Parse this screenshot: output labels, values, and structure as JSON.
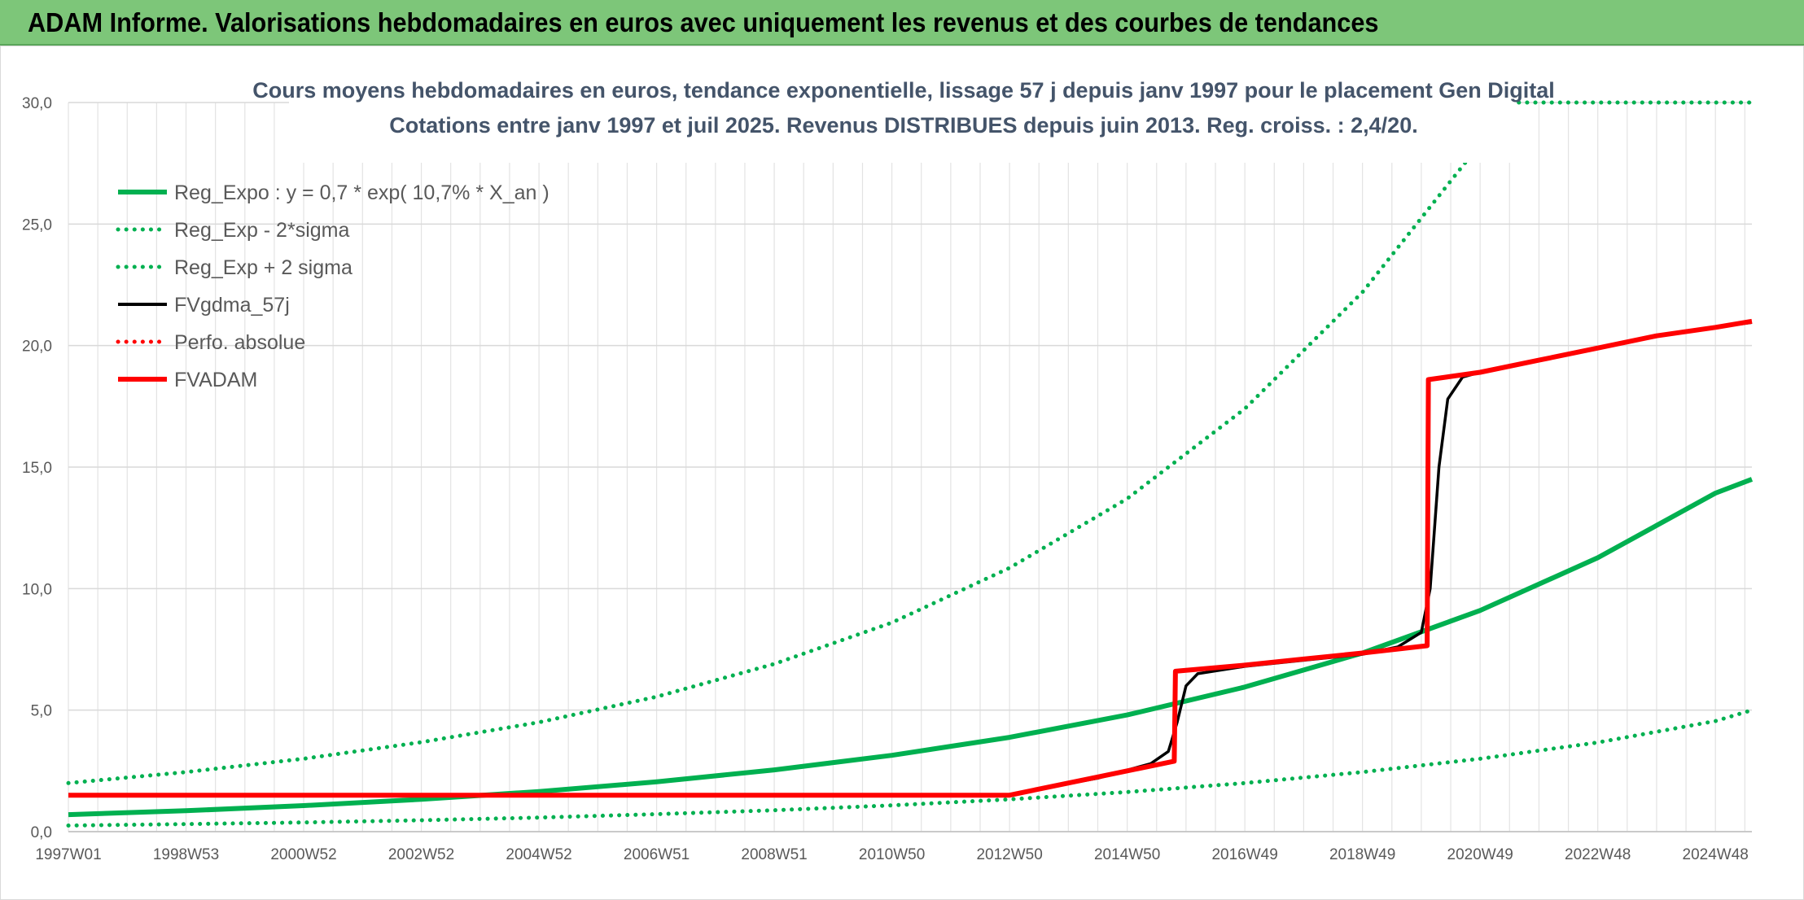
{
  "header": {
    "title": "ADAM Informe. Valorisations hebdomadaires en euros avec uniquement les revenus et des courbes de tendances"
  },
  "colors": {
    "header_bg": "#7dc679",
    "green": "#00b050",
    "red": "#ff0000",
    "black": "#000000",
    "grid": "#d9d9d9"
  },
  "chart_data": {
    "type": "line",
    "title": "Cours moyens hebdomadaires en euros, tendance exponentielle, lissage 57 j depuis janv 1997 pour le placement Gen Digital",
    "subtitle": "Cotations entre janv 1997 et juil 2025. Revenus DISTRIBUES depuis juin 2013. Reg. croiss. : 2,4/20.",
    "xlabel": "",
    "ylabel": "",
    "x_range": [
      1997.0,
      2025.62
    ],
    "ylim": [
      0,
      30
    ],
    "y_ticks": [
      "0,0",
      "5,0",
      "10,0",
      "15,0",
      "20,0",
      "25,0",
      "30,0"
    ],
    "x_ticks": [
      {
        "label": "1997W01",
        "x": 1997.0
      },
      {
        "label": "1998W53",
        "x": 1999.0
      },
      {
        "label": "2000W52",
        "x": 2001.0
      },
      {
        "label": "2002W52",
        "x": 2003.0
      },
      {
        "label": "2004W52",
        "x": 2005.0
      },
      {
        "label": "2006W51",
        "x": 2007.0
      },
      {
        "label": "2008W51",
        "x": 2009.0
      },
      {
        "label": "2010W50",
        "x": 2011.0
      },
      {
        "label": "2012W50",
        "x": 2013.0
      },
      {
        "label": "2014W50",
        "x": 2015.0
      },
      {
        "label": "2016W49",
        "x": 2017.0
      },
      {
        "label": "2018W49",
        "x": 2019.0
      },
      {
        "label": "2020W49",
        "x": 2021.0
      },
      {
        "label": "2022W48",
        "x": 2023.0
      },
      {
        "label": "2024W48",
        "x": 2025.0
      }
    ],
    "grid": true,
    "legend_position": "top-left",
    "series": [
      {
        "name": "Reg_Expo : y = 0,7 * exp( 10,7% *  X_an )",
        "color": "#00b050",
        "style": "solid",
        "points": [
          [
            1997.0,
            0.7
          ],
          [
            1999.0,
            0.86
          ],
          [
            2001.0,
            1.07
          ],
          [
            2003.0,
            1.33
          ],
          [
            2005.0,
            1.65
          ],
          [
            2007.0,
            2.05
          ],
          [
            2009.0,
            2.54
          ],
          [
            2011.0,
            3.14
          ],
          [
            2013.0,
            3.88
          ],
          [
            2015.0,
            4.8
          ],
          [
            2017.0,
            5.95
          ],
          [
            2019.0,
            7.35
          ],
          [
            2021.0,
            9.1
          ],
          [
            2023.0,
            11.27
          ],
          [
            2025.0,
            13.93
          ],
          [
            2025.62,
            14.5
          ]
        ]
      },
      {
        "name": "Reg_Exp - 2*sigma",
        "color": "#00b050",
        "style": "dotted",
        "points": [
          [
            1997.0,
            0.25
          ],
          [
            1999.0,
            0.31
          ],
          [
            2001.0,
            0.38
          ],
          [
            2003.0,
            0.47
          ],
          [
            2005.0,
            0.58
          ],
          [
            2007.0,
            0.72
          ],
          [
            2009.0,
            0.88
          ],
          [
            2011.0,
            1.08
          ],
          [
            2013.0,
            1.33
          ],
          [
            2015.0,
            1.63
          ],
          [
            2017.0,
            2.0
          ],
          [
            2019.0,
            2.45
          ],
          [
            2021.0,
            3.0
          ],
          [
            2023.0,
            3.67
          ],
          [
            2025.0,
            4.55
          ],
          [
            2025.62,
            5.0
          ]
        ]
      },
      {
        "name": "Reg_Exp + 2 sigma",
        "color": "#00b050",
        "style": "dotted",
        "points": [
          [
            1997.0,
            2.0
          ],
          [
            1999.0,
            2.45
          ],
          [
            2001.0,
            3.0
          ],
          [
            2003.0,
            3.68
          ],
          [
            2005.0,
            4.5
          ],
          [
            2007.0,
            5.55
          ],
          [
            2009.0,
            6.9
          ],
          [
            2011.0,
            8.6
          ],
          [
            2013.0,
            10.85
          ],
          [
            2015.0,
            13.7
          ],
          [
            2017.0,
            17.4
          ],
          [
            2019.0,
            22.2
          ],
          [
            2021.0,
            28.3
          ],
          [
            2021.6,
            30.0
          ],
          [
            2025.62,
            30.0
          ]
        ]
      },
      {
        "name": "FVgdma_57j",
        "color": "#000000",
        "style": "solid",
        "points": [
          [
            1997.0,
            1.5
          ],
          [
            2013.0,
            1.5
          ],
          [
            2013.5,
            1.75
          ],
          [
            2014.5,
            2.2
          ],
          [
            2015.4,
            2.8
          ],
          [
            2015.7,
            3.3
          ],
          [
            2015.85,
            4.5
          ],
          [
            2016.0,
            6.0
          ],
          [
            2016.2,
            6.5
          ],
          [
            2017.0,
            6.8
          ],
          [
            2018.0,
            7.05
          ],
          [
            2019.0,
            7.3
          ],
          [
            2019.6,
            7.6
          ],
          [
            2020.0,
            8.2
          ],
          [
            2020.15,
            10.0
          ],
          [
            2020.3,
            15.0
          ],
          [
            2020.45,
            17.8
          ],
          [
            2020.7,
            18.7
          ],
          [
            2021.0,
            18.9
          ],
          [
            2022.0,
            19.4
          ],
          [
            2023.0,
            19.9
          ],
          [
            2024.0,
            20.4
          ],
          [
            2025.0,
            20.75
          ],
          [
            2025.62,
            20.95
          ]
        ]
      },
      {
        "name": "Perfo. absolue",
        "color": "#ff0000",
        "style": "dotted",
        "points": []
      },
      {
        "name": "FVADAM",
        "color": "#ff0000",
        "style": "solid",
        "points": [
          [
            1997.0,
            1.5
          ],
          [
            2013.0,
            1.5
          ],
          [
            2013.5,
            1.75
          ],
          [
            2014.5,
            2.25
          ],
          [
            2015.8,
            2.9
          ],
          [
            2015.82,
            6.6
          ],
          [
            2017.0,
            6.85
          ],
          [
            2018.0,
            7.1
          ],
          [
            2019.0,
            7.35
          ],
          [
            2020.1,
            7.65
          ],
          [
            2020.12,
            18.6
          ],
          [
            2021.0,
            18.9
          ],
          [
            2022.0,
            19.4
          ],
          [
            2023.0,
            19.9
          ],
          [
            2024.0,
            20.4
          ],
          [
            2025.0,
            20.75
          ],
          [
            2025.62,
            21.0
          ]
        ]
      }
    ]
  }
}
